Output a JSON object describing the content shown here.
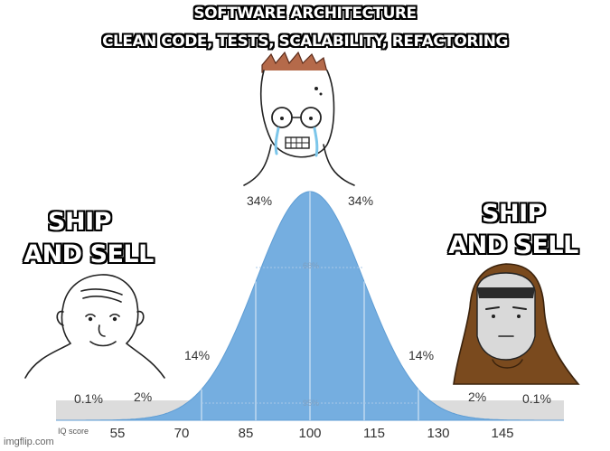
{
  "meme": {
    "top_caption": [
      "SOFTWARE ARCHITECTURE",
      "CLEAN CODE, TESTS, SCALABILITY, REFACTORING"
    ],
    "left_caption": [
      "SHIP",
      "AND SELL"
    ],
    "right_caption": [
      "SHIP",
      "AND SELL"
    ],
    "watermark": "imgflip.com"
  },
  "curve": {
    "axis_label": "IQ score",
    "ticks": [
      "55",
      "70",
      "85",
      "100",
      "115",
      "130",
      "145"
    ],
    "segment_percents": {
      "far_left": "0.1%",
      "left_tail": "2%",
      "left_mid": "14%",
      "center_left": "34%",
      "center_right": "34%",
      "right_mid": "14%",
      "right_tail": "2%",
      "far_right": "0.1%"
    },
    "inner_labels": {
      "one_sd": "68%",
      "two_sd": "95%"
    },
    "colors": {
      "fill": "#75aee0",
      "band": "#d9d9d9"
    }
  }
}
